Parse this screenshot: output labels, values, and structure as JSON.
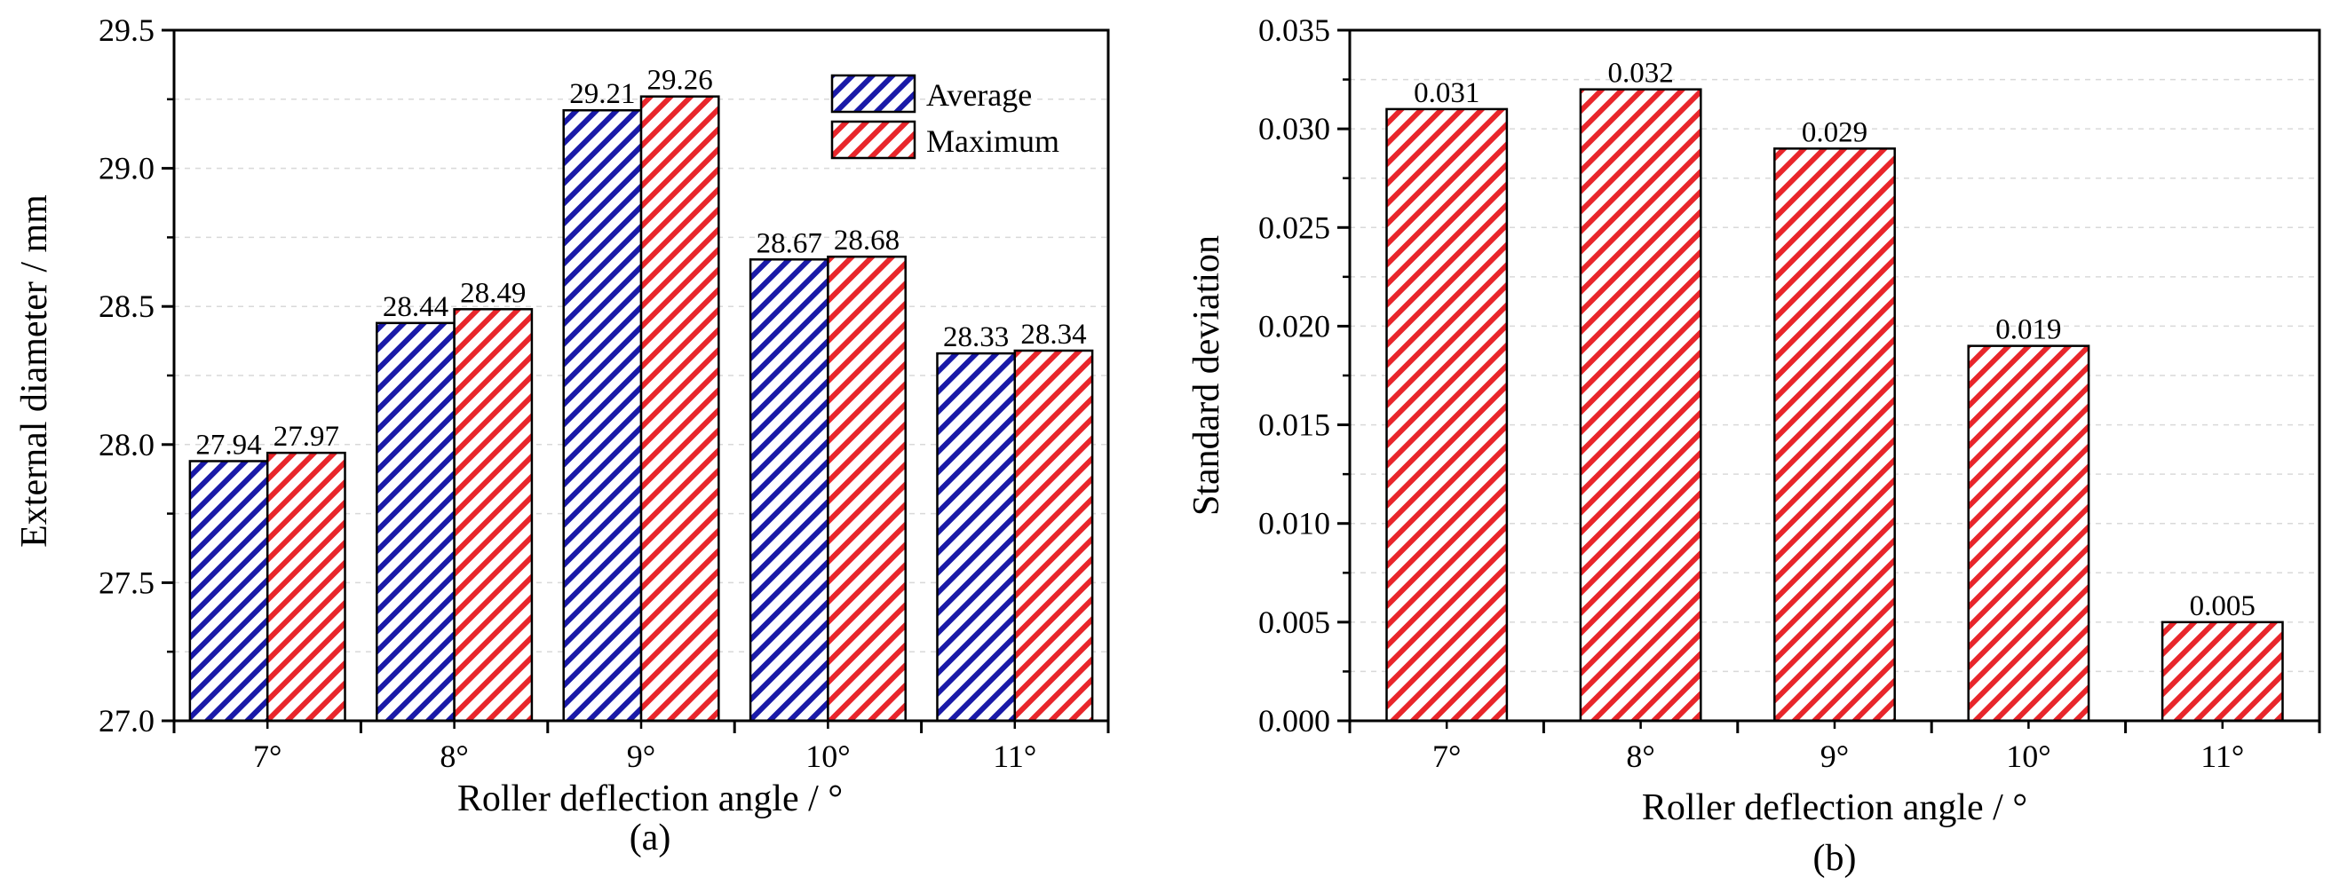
{
  "colors": {
    "blue": "#1a1aa8",
    "red": "#e8262b",
    "grid": "#d9d9d9",
    "axis": "#000000"
  },
  "chart_data": [
    {
      "type": "bar",
      "panel": "(a)",
      "categories": [
        "7°",
        "8°",
        "9°",
        "10°",
        "11°"
      ],
      "series": [
        {
          "name": "Average",
          "color": "#1a1aa8",
          "values": [
            27.94,
            28.44,
            29.21,
            28.67,
            28.33
          ]
        },
        {
          "name": "Maximum",
          "color": "#e8262b",
          "values": [
            27.97,
            28.49,
            29.26,
            28.68,
            28.34
          ]
        }
      ],
      "data_labels": [
        [
          "27.94",
          "28.44",
          "29.21",
          "28.67",
          "28.33"
        ],
        [
          "27.97",
          "28.49",
          "29.26",
          "28.68",
          "28.34"
        ]
      ],
      "xlabel": "Roller deflection angle / °",
      "ylabel": "External diameter / mm",
      "ylim": [
        27.0,
        29.5
      ],
      "yticks": [
        "27.0",
        "27.5",
        "28.0",
        "28.5",
        "29.0",
        "29.5"
      ],
      "ytick_values": [
        27.0,
        27.5,
        28.0,
        28.5,
        29.0,
        29.5
      ],
      "legend_position": "top-right",
      "grid": true
    },
    {
      "type": "bar",
      "panel": "(b)",
      "categories": [
        "7°",
        "8°",
        "9°",
        "10°",
        "11°"
      ],
      "series": [
        {
          "name": "Standard deviation",
          "color": "#e8262b",
          "values": [
            0.031,
            0.032,
            0.029,
            0.019,
            0.005
          ]
        }
      ],
      "data_labels": [
        [
          "0.031",
          "0.032",
          "0.029",
          "0.019",
          "0.005"
        ]
      ],
      "xlabel": "Roller deflection angle / °",
      "ylabel": "Standard deviation",
      "ylim": [
        0.0,
        0.035
      ],
      "yticks": [
        "0.000",
        "0.005",
        "0.010",
        "0.015",
        "0.020",
        "0.025",
        "0.030",
        "0.035"
      ],
      "ytick_values": [
        0.0,
        0.005,
        0.01,
        0.015,
        0.02,
        0.025,
        0.03,
        0.035
      ],
      "grid": true
    }
  ]
}
